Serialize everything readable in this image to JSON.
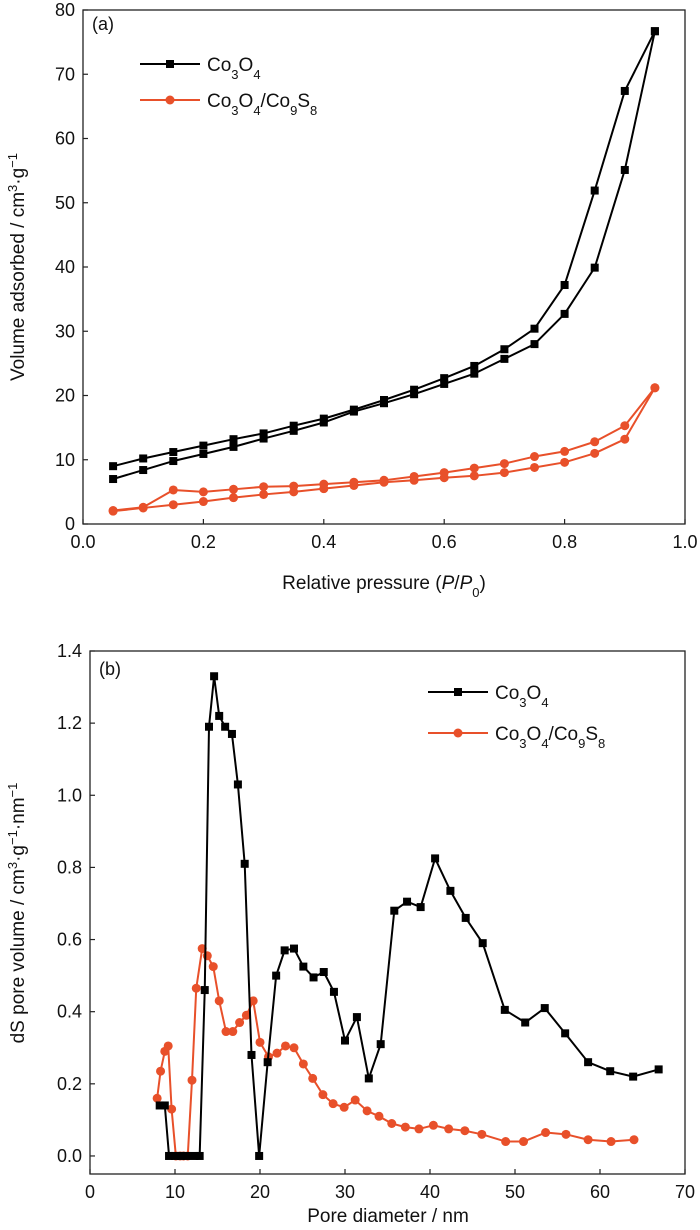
{
  "colors": {
    "co3o4": "#000000",
    "composite": "#E8502A",
    "axis": "#222222"
  },
  "chart_data": [
    {
      "type": "line",
      "panel_label": "(a)",
      "xlabel_prefix": "Relative pressure (",
      "xlabel_P": "P",
      "xlabel_slash": "/",
      "xlabel_P0": "P",
      "xlabel_sub0": "0",
      "xlabel_suffix": ")",
      "ylabel_main": "Volume adsorbed / cm",
      "ylabel_sup3": "3",
      "ylabel_mid": "·g",
      "ylabel_supm1": "−1",
      "xlim": [
        0.0,
        1.0
      ],
      "ylim": [
        0,
        80
      ],
      "xticks": [
        "0.0",
        "0.2",
        "0.4",
        "0.6",
        "0.8",
        "1.0"
      ],
      "yticks": [
        "0",
        "10",
        "20",
        "30",
        "40",
        "50",
        "60",
        "70",
        "80"
      ],
      "legend_position": "top-left",
      "series": [
        {
          "name": "Co3O4",
          "legend": {
            "a": "Co",
            "b": "3",
            "c": "O",
            "d": "4"
          },
          "color": "#000000",
          "marker": "square",
          "lines": [
            {
              "x": [
                0.05,
                0.1,
                0.15,
                0.2,
                0.25,
                0.3,
                0.35,
                0.4,
                0.45,
                0.5,
                0.55,
                0.6,
                0.65,
                0.7,
                0.75,
                0.8,
                0.85,
                0.9,
                0.95
              ],
              "y": [
                7.0,
                8.4,
                9.8,
                10.9,
                12.0,
                13.3,
                14.5,
                15.8,
                17.5,
                18.8,
                20.2,
                21.8,
                23.4,
                25.7,
                28.0,
                32.7,
                39.9,
                55.1,
                76.7
              ]
            },
            {
              "x": [
                0.95,
                0.9,
                0.85,
                0.8,
                0.75,
                0.7,
                0.65,
                0.6,
                0.55,
                0.5,
                0.45,
                0.4,
                0.35,
                0.3,
                0.25,
                0.2,
                0.15,
                0.1,
                0.05
              ],
              "y": [
                76.7,
                67.4,
                51.9,
                37.2,
                30.4,
                27.2,
                24.6,
                22.7,
                20.9,
                19.3,
                17.8,
                16.4,
                15.3,
                14.1,
                13.2,
                12.2,
                11.2,
                10.2,
                9.0
              ]
            }
          ]
        },
        {
          "name": "Co3O4/Co9S8",
          "legend": {
            "a": "Co",
            "b": "3",
            "c": "O",
            "d": "4",
            "e": "/Co",
            "f": "9",
            "g": "S",
            "h": "8"
          },
          "color": "#E8502A",
          "marker": "circle",
          "lines": [
            {
              "x": [
                0.05,
                0.1,
                0.15,
                0.2,
                0.25,
                0.3,
                0.35,
                0.4,
                0.45,
                0.5,
                0.55,
                0.6,
                0.65,
                0.7,
                0.75,
                0.8,
                0.85,
                0.9,
                0.95
              ],
              "y": [
                2.0,
                2.5,
                3.0,
                3.5,
                4.1,
                4.6,
                5.0,
                5.5,
                6.0,
                6.5,
                6.8,
                7.2,
                7.5,
                8.0,
                8.8,
                9.6,
                11.0,
                13.2,
                21.2
              ]
            },
            {
              "x": [
                0.95,
                0.9,
                0.85,
                0.8,
                0.75,
                0.7,
                0.65,
                0.6,
                0.55,
                0.5,
                0.45,
                0.4,
                0.35,
                0.3,
                0.25,
                0.2,
                0.15,
                0.1,
                0.05
              ],
              "y": [
                21.2,
                15.3,
                12.8,
                11.3,
                10.5,
                9.4,
                8.7,
                8.0,
                7.4,
                6.8,
                6.5,
                6.2,
                5.9,
                5.8,
                5.4,
                5.0,
                5.3,
                2.6,
                2.1
              ]
            }
          ]
        }
      ]
    },
    {
      "type": "line",
      "panel_label": "(b)",
      "xlabel": "Pore diameter / nm",
      "ylabel_main": "dS pore volume / cm",
      "ylabel_sup3": "3",
      "ylabel_mid": "·g",
      "ylabel_supm1": "−1",
      "ylabel_mid2": "·nm",
      "ylabel_supm1b": "−1",
      "xlim": [
        0,
        70
      ],
      "ylim": [
        -0.05,
        1.4
      ],
      "xticks": [
        "0",
        "10",
        "20",
        "30",
        "40",
        "50",
        "60",
        "70"
      ],
      "yticks": [
        "0.0",
        "0.2",
        "0.4",
        "0.6",
        "0.8",
        "1.0",
        "1.2",
        "1.4"
      ],
      "legend_position": "top-right",
      "series": [
        {
          "name": "Co3O4",
          "legend": {
            "a": "Co",
            "b": "3",
            "c": "O",
            "d": "4"
          },
          "color": "#000000",
          "marker": "square",
          "x": [
            8.2,
            8.8,
            9.3,
            10.0,
            10.7,
            11.4,
            12.3,
            12.9,
            13.5,
            14.0,
            14.6,
            15.2,
            15.9,
            16.7,
            17.4,
            18.2,
            19.0,
            19.9,
            20.9,
            21.9,
            22.9,
            24.0,
            25.1,
            26.3,
            27.5,
            28.7,
            30.0,
            31.4,
            32.8,
            34.2,
            35.8,
            37.3,
            38.9,
            40.6,
            42.4,
            44.2,
            46.2,
            48.8,
            51.2,
            53.5,
            55.9,
            58.6,
            61.2,
            63.9,
            66.9
          ],
          "y": [
            0.14,
            0.14,
            0.0,
            0.0,
            0.0,
            0.0,
            0.0,
            0.0,
            0.46,
            1.19,
            1.33,
            1.22,
            1.19,
            1.17,
            1.03,
            0.81,
            0.28,
            0.0,
            0.26,
            0.5,
            0.57,
            0.575,
            0.525,
            0.495,
            0.51,
            0.455,
            0.32,
            0.385,
            0.215,
            0.31,
            0.68,
            0.705,
            0.69,
            0.825,
            0.735,
            0.66,
            0.59,
            0.405,
            0.37,
            0.41,
            0.34,
            0.26,
            0.235,
            0.22,
            0.24
          ]
        },
        {
          "name": "Co3O4/Co9S8",
          "legend": {
            "a": "Co",
            "b": "3",
            "c": "O",
            "d": "4",
            "e": "/Co",
            "f": "9",
            "g": "S",
            "h": "8"
          },
          "color": "#E8502A",
          "marker": "circle",
          "x": [
            7.9,
            8.3,
            8.8,
            9.2,
            9.6,
            10.1,
            10.6,
            11.0,
            11.5,
            12.0,
            12.5,
            13.2,
            13.8,
            14.5,
            15.2,
            16.0,
            16.8,
            17.6,
            18.4,
            19.2,
            20.0,
            21.0,
            22.0,
            23.0,
            24.0,
            25.1,
            26.2,
            27.4,
            28.6,
            29.9,
            31.2,
            32.6,
            34.0,
            35.5,
            37.1,
            38.7,
            40.4,
            42.2,
            44.1,
            46.1,
            48.9,
            51.0,
            53.6,
            56.0,
            58.6,
            61.3,
            64.0
          ],
          "y": [
            0.16,
            0.235,
            0.29,
            0.305,
            0.13,
            0.0,
            0.0,
            0.0,
            0.0,
            0.21,
            0.465,
            0.575,
            0.555,
            0.525,
            0.43,
            0.345,
            0.345,
            0.37,
            0.39,
            0.43,
            0.315,
            0.275,
            0.285,
            0.305,
            0.3,
            0.255,
            0.215,
            0.17,
            0.145,
            0.135,
            0.155,
            0.125,
            0.11,
            0.09,
            0.08,
            0.075,
            0.085,
            0.075,
            0.07,
            0.06,
            0.04,
            0.04,
            0.065,
            0.06,
            0.045,
            0.04,
            0.045
          ]
        }
      ]
    }
  ]
}
